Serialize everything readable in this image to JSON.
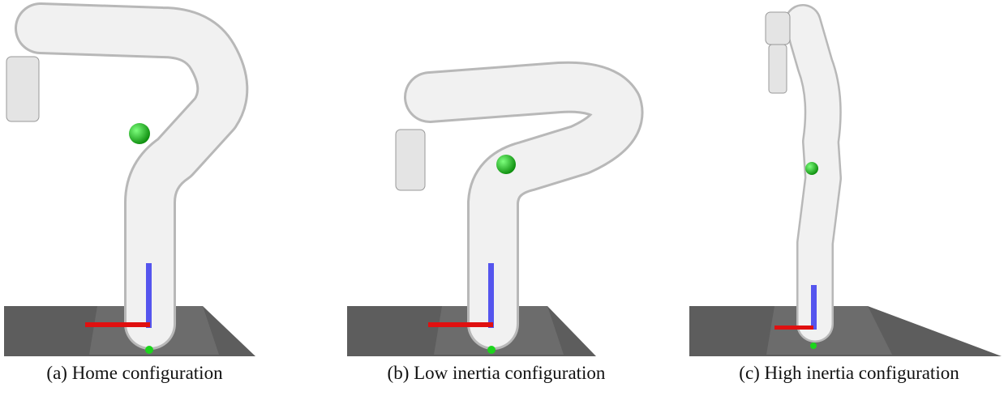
{
  "captions": [
    "(a) Home configuration",
    "(b) Low inertia configuration",
    "(c) High inertia configuration"
  ]
}
